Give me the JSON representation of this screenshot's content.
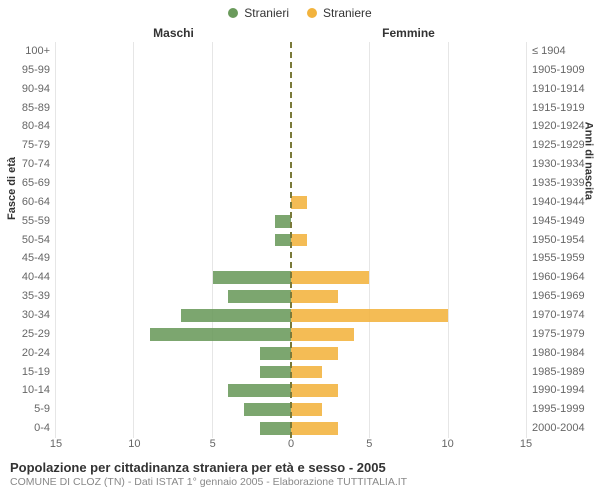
{
  "chart": {
    "type": "population-pyramid",
    "legend": [
      {
        "label": "Stranieri",
        "color": "#6a9a5b"
      },
      {
        "label": "Straniere",
        "color": "#f2b33d"
      }
    ],
    "column_headers": {
      "left": "Maschi",
      "right": "Femmine"
    },
    "y_title_left": "Fasce di età",
    "y_title_right": "Anni di nascita",
    "age_labels": [
      "100+",
      "95-99",
      "90-94",
      "85-89",
      "80-84",
      "75-79",
      "70-74",
      "65-69",
      "60-64",
      "55-59",
      "50-54",
      "45-49",
      "40-44",
      "35-39",
      "30-34",
      "25-29",
      "20-24",
      "15-19",
      "10-14",
      "5-9",
      "0-4"
    ],
    "birth_labels": [
      "≤ 1904",
      "1905-1909",
      "1910-1914",
      "1915-1919",
      "1920-1924",
      "1925-1929",
      "1930-1934",
      "1935-1939",
      "1940-1944",
      "1945-1949",
      "1950-1954",
      "1955-1959",
      "1960-1964",
      "1965-1969",
      "1970-1974",
      "1975-1979",
      "1980-1984",
      "1985-1989",
      "1990-1994",
      "1995-1999",
      "2000-2004"
    ],
    "male": [
      0,
      0,
      0,
      0,
      0,
      0,
      0,
      0,
      0,
      1,
      1,
      0,
      5,
      4,
      7,
      9,
      2,
      2,
      4,
      3,
      2
    ],
    "female": [
      0,
      0,
      0,
      0,
      0,
      0,
      0,
      0,
      1,
      0,
      1,
      0,
      5,
      3,
      10,
      4,
      3,
      2,
      3,
      2,
      3
    ],
    "xmax": 15,
    "xticks_left": [
      15,
      10,
      5,
      0
    ],
    "xticks_right": [
      0,
      5,
      10,
      15
    ],
    "bar_color_left": "#6a9a5b",
    "bar_color_right": "#f2b33d",
    "grid_color": "#e6e6e6",
    "centerline_color": "#7a7a3a",
    "background": "#ffffff",
    "label_fontsize": 11,
    "label_color": "#666666"
  },
  "footer": {
    "title": "Popolazione per cittadinanza straniera per età e sesso - 2005",
    "subtitle": "COMUNE DI CLOZ (TN) - Dati ISTAT 1° gennaio 2005 - Elaborazione TUTTITALIA.IT"
  }
}
